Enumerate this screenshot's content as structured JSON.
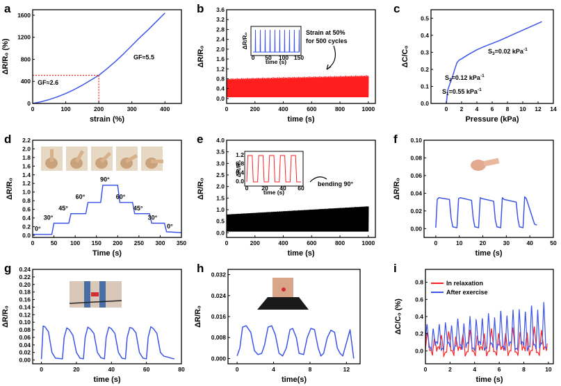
{
  "colors": {
    "blue": "#3c55e8",
    "red": "#ff1e1e",
    "black": "#000000"
  },
  "chart_data": [
    {
      "id": "a",
      "panel_label": "a",
      "type": "line",
      "xlabel": "strain (%)",
      "ylabel": "ΔR/R₀ (%)",
      "xlim": [
        0,
        450
      ],
      "ylim": [
        0,
        1700
      ],
      "xticks": [
        0,
        100,
        200,
        300,
        400
      ],
      "yticks": [
        0,
        400,
        800,
        1200,
        1600
      ],
      "series": [
        {
          "color": "#3c55e8",
          "x": [
            0,
            25,
            50,
            75,
            100,
            125,
            150,
            175,
            200,
            225,
            250,
            275,
            300,
            325,
            350,
            375,
            400
          ],
          "y": [
            0,
            30,
            70,
            120,
            180,
            250,
            330,
            420,
            510,
            630,
            760,
            900,
            1050,
            1200,
            1340,
            1490,
            1640
          ]
        }
      ],
      "guides": {
        "x": 200,
        "y": 510
      },
      "annotations": [
        {
          "text": "GF≈2.6",
          "x": 15,
          "y": 340
        },
        {
          "text": "GF≈5.5",
          "x": 305,
          "y": 800
        }
      ]
    },
    {
      "id": "b",
      "panel_label": "b",
      "type": "line",
      "xlabel": "time (s)",
      "ylabel": "ΔR/R₀",
      "xlim": [
        0,
        1050
      ],
      "ylim": [
        -0.2,
        3.6
      ],
      "xticks": [
        0,
        200,
        400,
        600,
        800,
        1000
      ],
      "yticks": [
        0.0,
        0.4,
        0.8,
        1.2,
        1.6,
        2.0,
        2.4,
        2.8,
        3.2,
        3.6
      ],
      "series": [
        {
          "color": "#ff1e1e",
          "x_range": [
            0,
            1000
          ],
          "min": 0.05,
          "max_start": 0.82,
          "max_end": 0.95,
          "cycles": 500
        }
      ],
      "inset": {
        "xlabel": "time (s)",
        "ylabel": "ΔR/R₀",
        "xticks": [
          0,
          50,
          100,
          150
        ],
        "peaks": 10,
        "color": "#3c55e8"
      },
      "annotations": [
        {
          "text": "Strain at 50%"
        },
        {
          "text": "for 500 cycles"
        }
      ]
    },
    {
      "id": "c",
      "panel_label": "c",
      "type": "line",
      "xlabel": "Pressure (kPa)",
      "ylabel": "ΔC/C₀",
      "xlim": [
        -2,
        14
      ],
      "ylim": [
        0,
        0.55
      ],
      "xticks": [
        0,
        2,
        4,
        6,
        8,
        10,
        12,
        14
      ],
      "yticks": [
        0.0,
        0.1,
        0.2,
        0.3,
        0.4,
        0.5
      ],
      "series": [
        {
          "color": "#3c55e8",
          "x": [
            0,
            0.2,
            0.5,
            0.8,
            1.1,
            1.4,
            1.7,
            2.0,
            3,
            4,
            5,
            6,
            7,
            8,
            9,
            10,
            11,
            12.5
          ],
          "y": [
            0,
            0.08,
            0.12,
            0.155,
            0.2,
            0.24,
            0.255,
            0.262,
            0.29,
            0.315,
            0.335,
            0.352,
            0.37,
            0.39,
            0.41,
            0.43,
            0.45,
            0.48
          ]
        }
      ],
      "annotations": [
        {
          "text": "S",
          "sub": "3",
          "tail": "=0.02 kPa",
          "sup": "-1"
        },
        {
          "text": "S",
          "sub": "2",
          "tail": "=0.12 kPa",
          "sup": "-1"
        },
        {
          "text": "S",
          "sub": "1",
          "tail": "=0.55 kPa",
          "sup": "-1"
        }
      ]
    },
    {
      "id": "d",
      "panel_label": "d",
      "type": "line",
      "xlabel": "Time (s)",
      "ylabel": "ΔR/R₀",
      "xlim": [
        0,
        350
      ],
      "ylim": [
        -0.05,
        2.2
      ],
      "xticks": [
        0,
        50,
        100,
        150,
        200,
        250,
        300,
        350
      ],
      "yticks": [
        0.0,
        0.2,
        0.4,
        0.6,
        0.8,
        1.0,
        1.2,
        1.4,
        1.6,
        1.8,
        2.0,
        2.2
      ],
      "series": [
        {
          "color": "#3c55e8",
          "x": [
            0,
            45,
            50,
            85,
            90,
            125,
            130,
            160,
            165,
            200,
            205,
            235,
            240,
            275,
            280,
            310,
            315,
            350
          ],
          "y": [
            0.02,
            0.02,
            0.28,
            0.28,
            0.5,
            0.5,
            0.76,
            0.76,
            1.16,
            1.16,
            0.76,
            0.76,
            0.5,
            0.5,
            0.28,
            0.28,
            0.08,
            0.06
          ]
        }
      ],
      "step_labels": [
        {
          "text": "0°",
          "x": 12,
          "y": 0.1
        },
        {
          "text": "30°",
          "x": 37,
          "y": 0.36
        },
        {
          "text": "45°",
          "x": 72,
          "y": 0.58
        },
        {
          "text": "60°",
          "x": 112,
          "y": 0.84
        },
        {
          "text": "90°",
          "x": 170,
          "y": 1.24
        },
        {
          "text": "60°",
          "x": 207,
          "y": 0.84
        },
        {
          "text": "45°",
          "x": 248,
          "y": 0.58
        },
        {
          "text": "30°",
          "x": 282,
          "y": 0.36
        },
        {
          "text": "0°",
          "x": 323,
          "y": 0.16
        }
      ]
    },
    {
      "id": "e",
      "panel_label": "e",
      "type": "line",
      "xlabel": "time (s)",
      "ylabel": "ΔR/R₀",
      "xlim": [
        0,
        1050
      ],
      "ylim": [
        -0.2,
        4.0
      ],
      "xticks": [
        0,
        200,
        400,
        600,
        800,
        1000
      ],
      "yticks": [
        0.0,
        0.5,
        1.0,
        1.5,
        2.0,
        2.5,
        3.0,
        3.5,
        4.0
      ],
      "series": [
        {
          "color": "#000000",
          "x_range": [
            0,
            1000
          ],
          "min": 0.05,
          "max_start": 0.8,
          "max_end": 1.15
        }
      ],
      "inset": {
        "xlabel": "time (s)",
        "ylabel": "ΔR/R₀",
        "xticks": [
          0,
          20,
          40,
          60
        ],
        "yticks": [
          0.0,
          0.4,
          0.8,
          1.2
        ],
        "peaks": 5,
        "color": "#ff1e1e"
      },
      "annotations": [
        {
          "text": "bending 90°"
        }
      ]
    },
    {
      "id": "f",
      "panel_label": "f",
      "type": "line",
      "xlabel": "time (s)",
      "ylabel": "ΔR/R₀",
      "xlim": [
        -5,
        50
      ],
      "ylim": [
        -0.01,
        0.1
      ],
      "xticks": [
        0,
        10,
        20,
        30,
        40,
        50
      ],
      "yticks": [
        0.0,
        0.02,
        0.04,
        0.06,
        0.08,
        0.1
      ],
      "series": [
        {
          "color": "#3c55e8",
          "x": [
            0,
            0.6,
            1.3,
            5.8,
            6.5,
            7.2,
            9.0,
            9.7,
            10.4,
            15.2,
            15.9,
            16.6,
            18.2,
            18.9,
            19.6,
            24.6,
            25.3,
            26.0,
            27.6,
            28.3,
            29.0,
            34.2,
            34.9,
            35.6,
            37.1,
            37.8,
            38.5,
            42,
            43
          ],
          "y": [
            0.001,
            0.033,
            0.035,
            0.033,
            0.012,
            0.002,
            0.001,
            0.034,
            0.035,
            0.032,
            0.012,
            0.002,
            0.001,
            0.035,
            0.034,
            0.031,
            0.01,
            0.002,
            0.001,
            0.035,
            0.033,
            0.03,
            0.011,
            0.002,
            0.001,
            0.036,
            0.034,
            0.005,
            0.004
          ]
        }
      ]
    },
    {
      "id": "g",
      "panel_label": "g",
      "type": "line",
      "xlabel": "time (s)",
      "ylabel": "ΔR/R₀",
      "xlim": [
        -5,
        80
      ],
      "ylim": [
        -0.01,
        0.24
      ],
      "xticks": [
        0,
        20,
        40,
        60,
        80
      ],
      "yticks": [
        0.0,
        0.02,
        0.04,
        0.06,
        0.08,
        0.1,
        0.12,
        0.14,
        0.16,
        0.18,
        0.2,
        0.22,
        0.24
      ],
      "series": [
        {
          "color": "#3c55e8",
          "x": [
            0,
            1,
            2,
            4,
            6,
            8,
            10,
            12,
            13,
            14.5,
            16,
            18,
            20,
            22,
            24,
            25,
            26.5,
            28,
            30,
            32,
            34,
            36,
            37,
            38.5,
            40,
            42,
            44,
            46,
            48,
            49,
            50.5,
            52,
            54,
            56,
            58,
            60,
            61,
            62.5,
            64,
            66,
            68,
            70,
            72,
            74,
            76
          ],
          "y": [
            0.002,
            0.09,
            0.088,
            0.075,
            0.02,
            0.005,
            0.004,
            0.003,
            0.06,
            0.085,
            0.08,
            0.065,
            0.02,
            0.005,
            0.003,
            0.06,
            0.087,
            0.082,
            0.07,
            0.02,
            0.006,
            0.003,
            0.06,
            0.087,
            0.083,
            0.07,
            0.02,
            0.005,
            0.003,
            0.06,
            0.086,
            0.084,
            0.072,
            0.02,
            0.005,
            0.003,
            0.06,
            0.088,
            0.083,
            0.07,
            0.02,
            0.01,
            0.008,
            0.005,
            0.003
          ]
        }
      ]
    },
    {
      "id": "h",
      "panel_label": "h",
      "type": "line",
      "xlabel": "time(s)",
      "ylabel": "ΔR/R₀",
      "xlim": [
        -1,
        13.5
      ],
      "ylim": [
        -0.002,
        0.034
      ],
      "xticks": [
        0,
        4,
        8,
        12
      ],
      "yticks": [
        0.0,
        0.008,
        0.016,
        0.024,
        0.032
      ],
      "series": [
        {
          "color": "#3c55e8",
          "x": [
            0,
            0.3,
            0.6,
            1.0,
            1.5,
            1.9,
            2.3,
            2.7,
            3.0,
            3.4,
            3.8,
            4.2,
            4.6,
            5.0,
            5.4,
            5.8,
            6.1,
            6.5,
            6.8,
            7.3,
            7.7,
            8.1,
            8.5,
            8.9,
            9.2,
            9.5,
            9.9,
            10.3,
            10.7,
            11.0,
            11.3,
            11.6,
            12.0,
            12.4,
            12.8
          ],
          "y": [
            0.001,
            0.004,
            0.012,
            0.0125,
            0.01,
            0.003,
            0.0015,
            0.002,
            0.005,
            0.012,
            0.0125,
            0.009,
            0.002,
            0.001,
            0.004,
            0.011,
            0.0115,
            0.008,
            0.002,
            0.0015,
            0.008,
            0.0115,
            0.011,
            0.004,
            0.001,
            0.002,
            0.008,
            0.0108,
            0.01,
            0.004,
            0.002,
            0.001,
            0.006,
            0.011,
            0.0
          ]
        }
      ]
    },
    {
      "id": "i",
      "panel_label": "i",
      "type": "line",
      "xlabel": "time (s)",
      "ylabel": "ΔC/C₀ (%)",
      "xlim": [
        0,
        10.4
      ],
      "ylim": [
        -0.15,
        0.95
      ],
      "xticks": [
        0,
        2,
        4,
        6,
        8,
        10
      ],
      "yticks": [
        0.0,
        0.2,
        0.4,
        0.6,
        0.8
      ],
      "legend": {
        "placement": "top-left"
      },
      "series": [
        {
          "name": "In relaxation",
          "color": "#ff1e1e",
          "x_range": [
            0,
            9.9
          ],
          "period": 0.58,
          "base": 0.02,
          "peak_start": 0.18,
          "peak_end": 0.26
        },
        {
          "name": "After exercise",
          "color": "#3c55e8",
          "x_range": [
            0,
            9.9
          ],
          "period": 0.5,
          "base": 0.08,
          "peak_start": 0.28,
          "peak_end": 0.55
        }
      ]
    }
  ]
}
